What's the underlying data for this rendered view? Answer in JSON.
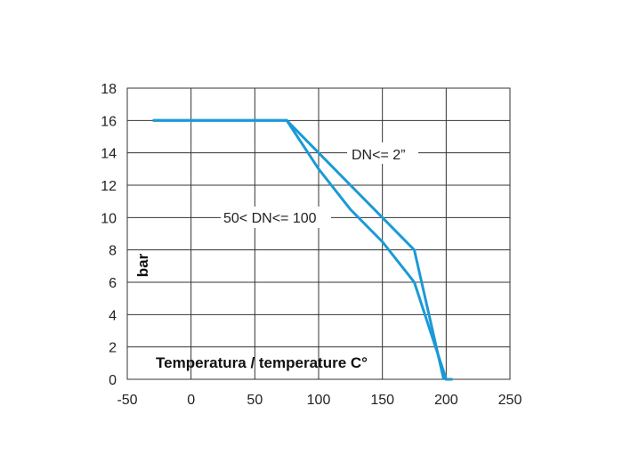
{
  "chart_data": {
    "type": "line",
    "xlim": [
      -50,
      250
    ],
    "ylim": [
      0,
      18
    ],
    "x_ticks": [
      -50,
      0,
      50,
      100,
      150,
      200,
      250
    ],
    "y_ticks": [
      0,
      2,
      4,
      6,
      8,
      10,
      12,
      14,
      16,
      18
    ],
    "xlabel": "Temperatura / temperature C°",
    "ylabel": "bar",
    "grid": true,
    "legend": "none",
    "line_color": "#1a9ad6",
    "grid_color": "#333333",
    "series": [
      {
        "name": "DN<= 2”",
        "points": [
          [
            -30,
            16
          ],
          [
            75,
            16
          ],
          [
            175,
            8
          ],
          [
            198,
            0
          ]
        ]
      },
      {
        "name": "50< DN<= 100",
        "points": [
          [
            -30,
            16
          ],
          [
            75,
            16
          ],
          [
            100,
            13
          ],
          [
            125,
            10.5
          ],
          [
            150,
            8.5
          ],
          [
            175,
            6
          ],
          [
            200,
            0
          ],
          [
            205,
            0
          ]
        ]
      }
    ]
  }
}
